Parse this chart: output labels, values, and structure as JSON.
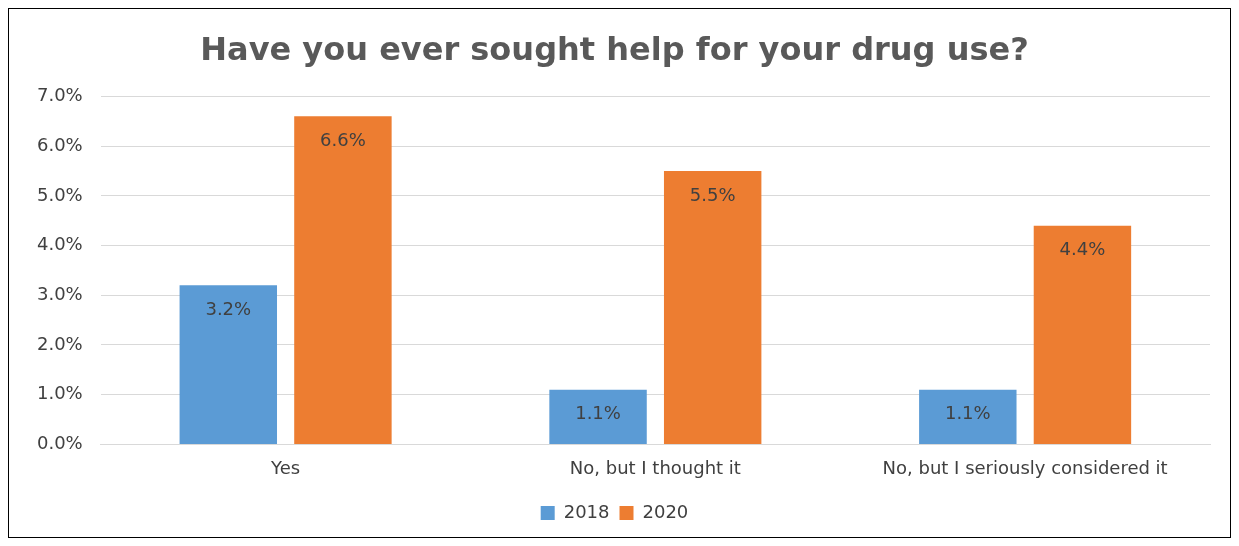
{
  "chart_data": {
    "type": "bar",
    "title": "Have you ever sought help for your drug use?",
    "categories": [
      "Yes",
      "No, but I thought it",
      "No, but I seriously considered it"
    ],
    "series": [
      {
        "name": "2018",
        "color": "#5b9bd5",
        "values": [
          3.2,
          1.1,
          1.1
        ],
        "value_labels": [
          "3.2%",
          "1.1%",
          "1.1%"
        ]
      },
      {
        "name": "2020",
        "color": "#ed7d31",
        "values": [
          6.6,
          5.5,
          4.4
        ],
        "value_labels": [
          "6.6%",
          "5.5%",
          "4.4%"
        ]
      }
    ],
    "ylim": [
      0,
      7
    ],
    "yticks": [
      {
        "value": 0,
        "label": "0.0%"
      },
      {
        "value": 1,
        "label": "1.0%"
      },
      {
        "value": 2,
        "label": "2.0%"
      },
      {
        "value": 3,
        "label": "3.0%"
      },
      {
        "value": 4,
        "label": "4.0%"
      },
      {
        "value": 5,
        "label": "5.0%"
      },
      {
        "value": 6,
        "label": "6.0%"
      },
      {
        "value": 7,
        "label": "7.0%"
      }
    ],
    "grid": "y",
    "legend": "bottom"
  }
}
